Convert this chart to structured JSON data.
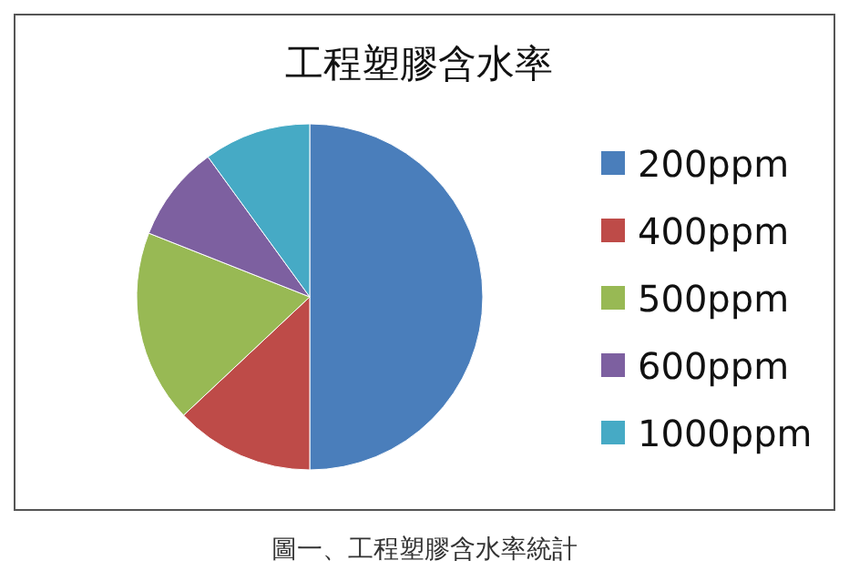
{
  "chart_data": {
    "type": "pie",
    "title": "工程塑膠含水率",
    "categories": [
      "200ppm",
      "400ppm",
      "500ppm",
      "600ppm",
      "1000ppm"
    ],
    "values": [
      50,
      13,
      18,
      9,
      10
    ],
    "colors": [
      "#4a7ebb",
      "#be4b48",
      "#98b954",
      "#7d60a0",
      "#46aac5"
    ],
    "legend": "right",
    "annotations": [
      "圖一、工程塑膠含水率統計"
    ]
  }
}
